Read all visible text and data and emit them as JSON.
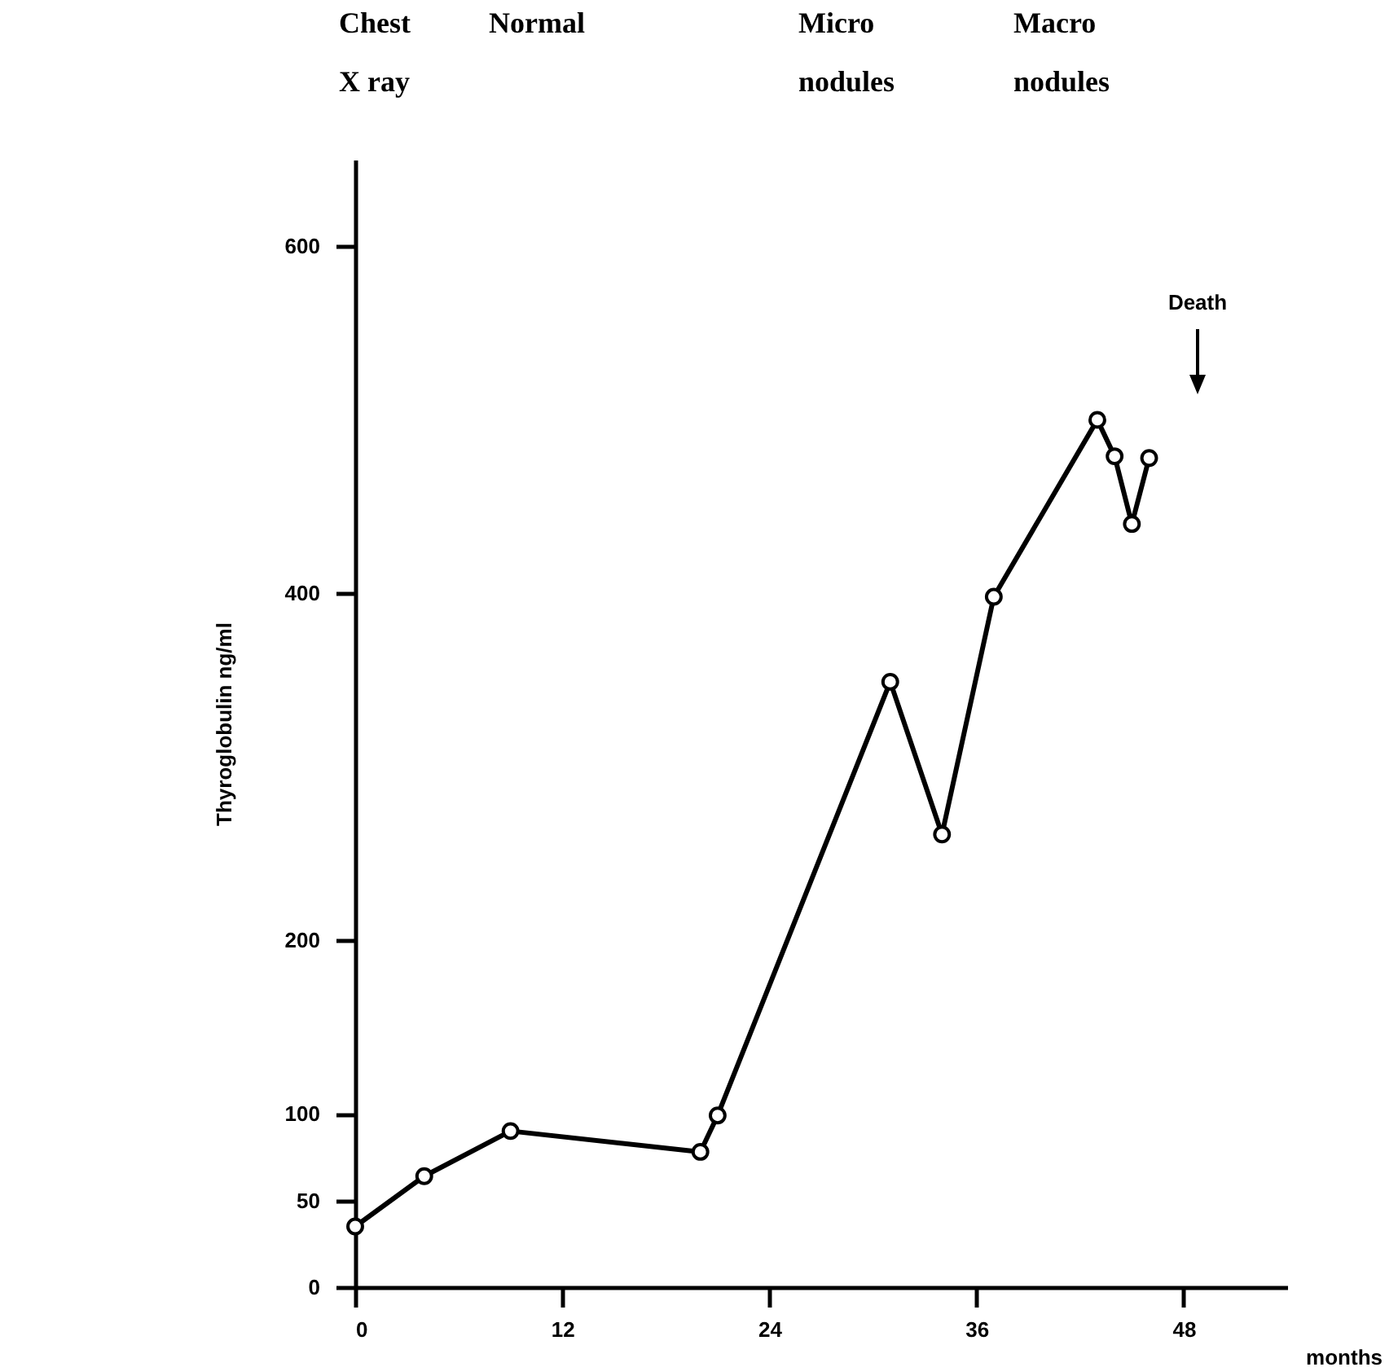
{
  "chart_data": {
    "type": "line",
    "ylabel": "Thyroglobulin ng/ml",
    "xlabel": "months",
    "x": [
      0,
      4,
      9,
      20,
      21,
      31,
      34,
      37,
      43,
      44,
      45,
      46
    ],
    "series": [
      {
        "color": "#000000",
        "values": [
          35,
          64,
          90,
          78,
          99,
          349,
          261,
          398,
          500,
          479,
          440,
          478
        ]
      }
    ],
    "xlim": [
      0,
      54
    ],
    "xticks": [
      0,
      12,
      24,
      36,
      48
    ],
    "ylim": [
      0,
      650
    ],
    "yticks": [
      0,
      50,
      100,
      200,
      400,
      600
    ],
    "marker": "circle",
    "line_style": "solid",
    "grid": false,
    "legend": false,
    "annotations": [
      "Chest\nX ray",
      "Normal",
      "Micro\nnodules",
      "Macro\nnodules",
      "Death"
    ]
  }
}
